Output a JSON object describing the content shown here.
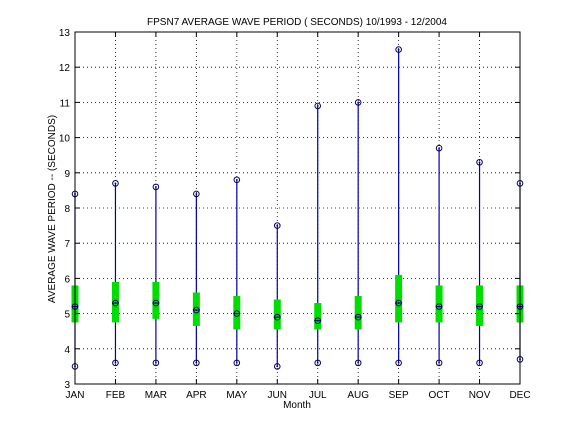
{
  "chart_data": {
    "type": "box",
    "title": "FPSN7  AVERAGE WAVE PERIOD ( SECONDS) 10/1993 - 12/2004",
    "xlabel": "Month",
    "ylabel": "AVERAGE WAVE PERIOD --  (SECONDS)",
    "ylim": [
      3,
      13
    ],
    "yticks": [
      3,
      4,
      5,
      6,
      7,
      8,
      9,
      10,
      11,
      12,
      13
    ],
    "grid": true,
    "categories": [
      "JAN",
      "FEB",
      "MAR",
      "APR",
      "MAY",
      "JUN",
      "JUL",
      "AUG",
      "SEP",
      "OCT",
      "NOV",
      "DEC"
    ],
    "min": [
      3.5,
      3.6,
      3.6,
      3.6,
      3.6,
      3.5,
      3.6,
      3.6,
      3.6,
      3.6,
      3.6,
      3.7
    ],
    "q1": [
      4.75,
      4.75,
      4.85,
      4.65,
      4.55,
      4.55,
      4.55,
      4.55,
      4.75,
      4.75,
      4.65,
      4.75
    ],
    "median": [
      5.2,
      5.3,
      5.3,
      5.1,
      5.0,
      4.9,
      4.8,
      4.9,
      5.3,
      5.2,
      5.2,
      5.2
    ],
    "mean": [
      5.2,
      5.3,
      5.3,
      5.1,
      5.0,
      4.9,
      4.8,
      4.9,
      5.3,
      5.2,
      5.2,
      5.2
    ],
    "q3": [
      5.8,
      5.9,
      5.9,
      5.6,
      5.5,
      5.4,
      5.3,
      5.5,
      6.1,
      5.8,
      5.8,
      5.8
    ],
    "max": [
      8.4,
      8.7,
      8.6,
      8.4,
      8.8,
      7.5,
      10.9,
      11.0,
      12.5,
      9.7,
      9.3,
      8.7
    ],
    "colors": {
      "whisker": "#0000aa",
      "box": "#00dd00",
      "marker": "#000066",
      "grid": "#000000"
    }
  }
}
